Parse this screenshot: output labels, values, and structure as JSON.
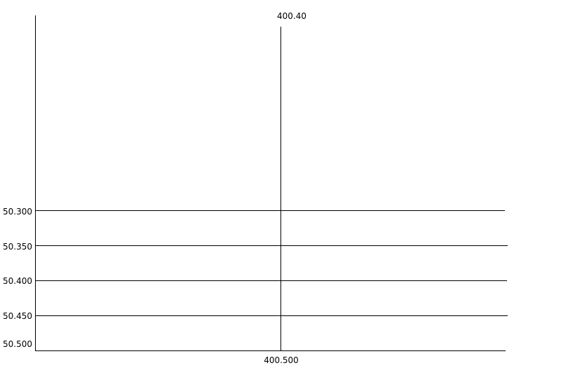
{
  "diagram": {
    "top_label": "400.40",
    "bottom_label": "400.500",
    "row_labels": [
      "50.300",
      "50.350",
      "50.400",
      "50.450",
      "50.500"
    ],
    "line_color": "#000000",
    "background": "#ffffff"
  }
}
